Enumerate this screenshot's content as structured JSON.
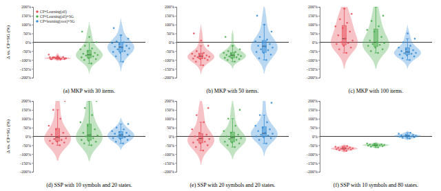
{
  "chart_data": [
    {
      "type": "violin",
      "title": "(a) MKP with 30 items.",
      "y_label": "Δ vs. CP+SG (%)",
      "legend": "upper left",
      "tick_labels": "y",
      "ylim": [
        -200,
        200
      ],
      "yticks": [
        {
          "value": -200,
          "label": "-200%"
        },
        {
          "value": -150,
          "label": "-150%"
        },
        {
          "value": -100,
          "label": "-100%"
        },
        {
          "value": -50,
          "label": "-50%"
        },
        {
          "value": 0,
          "label": "0%"
        },
        {
          "value": 50,
          "label": "50%"
        },
        {
          "value": 100,
          "label": "100%"
        },
        {
          "value": 150,
          "label": "150%"
        },
        {
          "value": 200,
          "label": "200%"
        }
      ],
      "series": [
        {
          "name": "CP+Learning(all)",
          "color": "#e8505b",
          "values": [
            -92,
            -88,
            -95,
            -90,
            -85,
            -93,
            -87,
            -91,
            -89,
            -96,
            -84,
            -90,
            -70,
            -98,
            -86,
            -92,
            -80,
            -94
          ],
          "box": {
            "low": -98,
            "q1": -93,
            "median": -90,
            "q3": -86,
            "high": -80
          }
        },
        {
          "name": "CP+Learning(all)+SG",
          "color": "#4caf50",
          "values": [
            -120,
            -100,
            -95,
            -90,
            -85,
            -80,
            -75,
            -72,
            -70,
            -65,
            -60,
            -50,
            -40,
            -35,
            -20,
            0,
            30,
            60
          ],
          "box": {
            "low": -120,
            "q1": -88,
            "median": -71,
            "q3": -45,
            "high": 0
          }
        },
        {
          "name": "CP+learning(root)+SG",
          "color": "#3a8fd8",
          "values": [
            -110,
            -80,
            -70,
            -60,
            -55,
            -50,
            -40,
            -35,
            -30,
            -25,
            -20,
            -10,
            -5,
            0,
            5,
            20,
            40,
            80
          ],
          "box": {
            "low": -110,
            "q1": -55,
            "median": -27,
            "q3": 0,
            "high": 40
          }
        }
      ]
    },
    {
      "type": "violin",
      "title": "(b) MKP with 50 items.",
      "tick_labels": "y",
      "ylim": [
        -200,
        200
      ],
      "yticks": [
        {
          "value": -200,
          "label": "-200%"
        },
        {
          "value": -150,
          "label": "-150%"
        },
        {
          "value": -100,
          "label": "-100%"
        },
        {
          "value": -50,
          "label": "-50%"
        },
        {
          "value": 0,
          "label": "0%"
        },
        {
          "value": 50,
          "label": "50%"
        },
        {
          "value": 100,
          "label": "100%"
        },
        {
          "value": 150,
          "label": "150%"
        },
        {
          "value": 200,
          "label": "200%"
        }
      ],
      "series": [
        {
          "color": "#e8505b",
          "values": [
            -130,
            -110,
            -100,
            -95,
            -92,
            -90,
            -85,
            -82,
            -80,
            -78,
            -75,
            -70,
            -65,
            -60,
            -50,
            -20,
            10,
            50
          ],
          "box": {
            "low": -130,
            "q1": -94,
            "median": -79,
            "q3": -62,
            "high": -20
          }
        },
        {
          "color": "#4caf50",
          "values": [
            -110,
            -100,
            -95,
            -90,
            -88,
            -85,
            -80,
            -78,
            -75,
            -72,
            -70,
            -65,
            -60,
            -55,
            -50,
            -40,
            -20,
            30
          ],
          "box": {
            "low": -110,
            "q1": -89,
            "median": -73,
            "q3": -57,
            "high": -20
          }
        },
        {
          "color": "#3a8fd8",
          "values": [
            -100,
            -90,
            -70,
            -60,
            -55,
            -45,
            -40,
            -30,
            -25,
            -20,
            -10,
            0,
            5,
            15,
            30,
            60,
            100,
            150
          ],
          "box": {
            "low": -100,
            "q1": -57,
            "median": -22,
            "q3": 10,
            "high": 100
          }
        }
      ]
    },
    {
      "type": "violin",
      "title": "(c) MKP with 100 items.",
      "tick_labels": "y",
      "ylim": [
        -200,
        200
      ],
      "yticks": [
        {
          "value": -200,
          "label": "-200%"
        },
        {
          "value": -150,
          "label": "-150%"
        },
        {
          "value": -100,
          "label": "-100%"
        },
        {
          "value": -50,
          "label": "-50%"
        },
        {
          "value": 0,
          "label": "0%"
        },
        {
          "value": 50,
          "label": "50%"
        },
        {
          "value": 100,
          "label": "100%"
        },
        {
          "value": 150,
          "label": "150%"
        },
        {
          "value": 200,
          "label": "200%"
        }
      ],
      "series": [
        {
          "color": "#e8505b",
          "values": [
            -60,
            -40,
            -30,
            -20,
            -10,
            -5,
            0,
            10,
            20,
            40,
            60,
            80,
            90,
            110,
            130,
            160,
            190
          ],
          "box": {
            "low": -60,
            "q1": -15,
            "median": 20,
            "q3": 95,
            "high": 190
          }
        },
        {
          "color": "#4caf50",
          "values": [
            -60,
            -50,
            -40,
            -30,
            -20,
            -15,
            -10,
            -5,
            0,
            10,
            30,
            60,
            70,
            90,
            120,
            150,
            200
          ],
          "box": {
            "low": -60,
            "q1": -25,
            "median": 0,
            "q3": 75,
            "high": 200
          }
        },
        {
          "color": "#3a8fd8",
          "values": [
            -100,
            -90,
            -80,
            -75,
            -70,
            -65,
            -62,
            -60,
            -55,
            -50,
            -45,
            -40,
            -30,
            -20,
            0,
            20,
            50
          ],
          "box": {
            "low": -100,
            "q1": -70,
            "median": -55,
            "q3": -30,
            "high": 20
          }
        }
      ]
    },
    {
      "type": "violin",
      "title": "(d) SSP with 10 symbols and 20 states.",
      "y_label": "Δ vs. CP+SG (%)",
      "tick_labels": "y",
      "ylim": [
        -200,
        200
      ],
      "yticks": [
        {
          "value": -200,
          "label": "-200%"
        },
        {
          "value": -150,
          "label": "-150%"
        },
        {
          "value": -100,
          "label": "-100%"
        },
        {
          "value": -50,
          "label": "-50%"
        },
        {
          "value": 0,
          "label": "0%"
        },
        {
          "value": 50,
          "label": "50%"
        },
        {
          "value": 100,
          "label": "100%"
        },
        {
          "value": 150,
          "label": "150%"
        },
        {
          "value": 200,
          "label": "200%"
        }
      ],
      "series": [
        {
          "color": "#e8505b",
          "values": [
            -50,
            -40,
            -35,
            -30,
            -25,
            -20,
            -15,
            -10,
            0,
            10,
            20,
            40,
            60,
            100,
            150,
            200
          ],
          "box": {
            "low": -50,
            "q1": -27,
            "median": -5,
            "q3": 45,
            "high": 150
          }
        },
        {
          "color": "#4caf50",
          "values": [
            -50,
            -40,
            -30,
            -25,
            -20,
            -10,
            0,
            5,
            10,
            20,
            40,
            60,
            80,
            120,
            160,
            200
          ],
          "box": {
            "low": -50,
            "q1": -22,
            "median": 7,
            "q3": 70,
            "high": 200
          }
        },
        {
          "color": "#3a8fd8",
          "values": [
            -40,
            -30,
            -20,
            -15,
            -10,
            -5,
            0,
            5,
            10,
            15,
            20,
            25,
            30,
            40,
            50,
            70
          ],
          "box": {
            "low": -40,
            "q1": -12,
            "median": 7,
            "q3": 27,
            "high": 70
          }
        }
      ]
    },
    {
      "type": "violin",
      "title": "(e) SSP with 20 symbols and 20 states.",
      "tick_labels": "y",
      "ylim": [
        -200,
        200
      ],
      "yticks": [
        {
          "value": -200,
          "label": "-200%"
        },
        {
          "value": -150,
          "label": "-150%"
        },
        {
          "value": -100,
          "label": "-100%"
        },
        {
          "value": -50,
          "label": "-50%"
        },
        {
          "value": 0,
          "label": "0%"
        },
        {
          "value": 50,
          "label": "50%"
        },
        {
          "value": 100,
          "label": "100%"
        },
        {
          "value": 150,
          "label": "150%"
        },
        {
          "value": 200,
          "label": "200%"
        }
      ],
      "series": [
        {
          "color": "#e8505b",
          "values": [
            -80,
            -60,
            -50,
            -40,
            -35,
            -30,
            -20,
            -15,
            -10,
            0,
            10,
            20,
            40,
            80,
            120,
            160
          ],
          "box": {
            "low": -80,
            "q1": -37,
            "median": -12,
            "q3": 15,
            "high": 80
          }
        },
        {
          "color": "#4caf50",
          "values": [
            -60,
            -50,
            -40,
            -35,
            -30,
            -20,
            -15,
            -10,
            -5,
            0,
            10,
            20,
            30,
            60,
            100,
            150
          ],
          "box": {
            "low": -60,
            "q1": -32,
            "median": -7,
            "q3": 25,
            "high": 100
          }
        },
        {
          "color": "#3a8fd8",
          "values": [
            -40,
            -20,
            -10,
            -5,
            0,
            5,
            10,
            15,
            20,
            30,
            40,
            50,
            60,
            80,
            120,
            190
          ],
          "box": {
            "low": -40,
            "q1": -2,
            "median": 17,
            "q3": 55,
            "high": 120
          }
        }
      ]
    },
    {
      "type": "violin",
      "title": "(f) SSP with 10 symbols and 80 states.",
      "tick_labels": "y",
      "ylim": [
        -200,
        200
      ],
      "yticks": [
        {
          "value": -200,
          "label": "-200%"
        },
        {
          "value": -150,
          "label": "-150%"
        },
        {
          "value": -100,
          "label": "-100%"
        },
        {
          "value": -50,
          "label": "-50%"
        },
        {
          "value": 0,
          "label": "0%"
        },
        {
          "value": 50,
          "label": "50%"
        },
        {
          "value": 100,
          "label": "100%"
        },
        {
          "value": 150,
          "label": "150%"
        },
        {
          "value": 200,
          "label": "200%"
        }
      ],
      "series": [
        {
          "color": "#e8505b",
          "values": [
            -82,
            -78,
            -75,
            -73,
            -72,
            -70,
            -70,
            -68,
            -67,
            -65,
            -63,
            -60,
            -58,
            -55
          ],
          "box": {
            "low": -82,
            "q1": -73,
            "median": -69,
            "q3": -63,
            "high": -55
          }
        },
        {
          "color": "#4caf50",
          "values": [
            -62,
            -58,
            -55,
            -53,
            -52,
            -50,
            -50,
            -49,
            -48,
            -46,
            -45,
            -42,
            -40
          ],
          "box": {
            "low": -62,
            "q1": -54,
            "median": -50,
            "q3": -46,
            "high": -40
          }
        },
        {
          "color": "#3a8fd8",
          "values": [
            -12,
            -8,
            -5,
            -3,
            -1,
            0,
            2,
            3,
            5,
            6,
            8,
            10,
            15,
            20
          ],
          "box": {
            "low": -12,
            "q1": -3,
            "median": 2.5,
            "q3": 8,
            "high": 20
          }
        }
      ]
    }
  ]
}
